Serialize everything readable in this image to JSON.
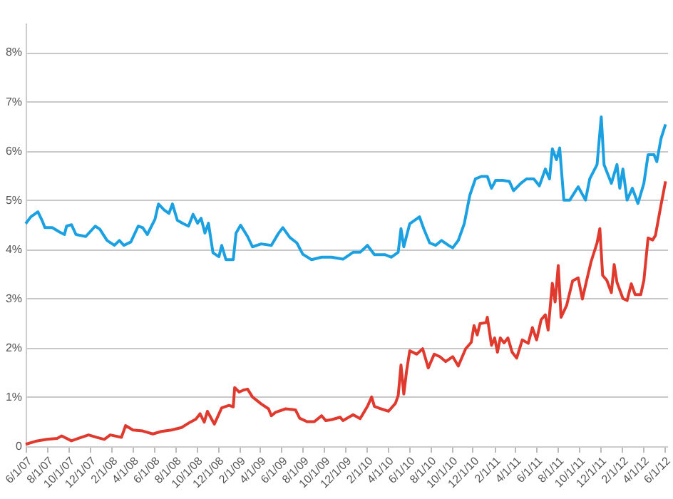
{
  "chart_data": {
    "type": "line",
    "x": [
      "2007-06-01",
      "2007-06-16",
      "2007-07-06",
      "2007-07-19",
      "2007-07-26",
      "2007-08-16",
      "2007-09-06",
      "2007-09-20",
      "2007-09-26",
      "2007-10-10",
      "2007-10-23",
      "2007-11-20",
      "2007-12-17",
      "2007-12-30",
      "2008-01-20",
      "2008-02-10",
      "2008-02-24",
      "2008-03-08",
      "2008-03-28",
      "2008-04-18",
      "2008-05-01",
      "2008-05-14",
      "2008-06-05",
      "2008-06-15",
      "2008-07-01",
      "2008-07-15",
      "2008-07-25",
      "2008-08-08",
      "2008-08-25",
      "2008-09-09",
      "2008-09-22",
      "2008-10-05",
      "2008-10-15",
      "2008-10-26",
      "2008-11-05",
      "2008-11-18",
      "2008-12-05",
      "2008-12-13",
      "2008-12-25",
      "2009-01-15",
      "2009-01-23",
      "2009-02-05",
      "2009-02-25",
      "2009-03-11",
      "2009-04-05",
      "2009-05-04",
      "2009-05-24",
      "2009-06-06",
      "2009-06-26",
      "2009-07-16",
      "2009-08-02",
      "2009-08-27",
      "2009-09-25",
      "2009-10-23",
      "2009-11-25",
      "2009-12-24",
      "2010-01-13",
      "2010-02-03",
      "2010-02-23",
      "2010-03-26",
      "2010-04-12",
      "2010-05-02",
      "2010-05-10",
      "2010-05-18",
      "2010-06-04",
      "2010-06-20",
      "2010-07-02",
      "2010-07-14",
      "2010-07-31",
      "2010-08-17",
      "2010-09-03",
      "2010-09-23",
      "2010-10-05",
      "2010-10-21",
      "2010-11-07",
      "2010-11-23",
      "2010-12-09",
      "2010-12-26",
      "2011-01-12",
      "2011-01-24",
      "2011-02-05",
      "2011-02-25",
      "2011-03-16",
      "2011-03-28",
      "2011-04-18",
      "2011-05-04",
      "2011-05-25",
      "2011-06-10",
      "2011-06-27",
      "2011-07-09",
      "2011-07-17",
      "2011-07-29",
      "2011-08-07",
      "2011-08-19",
      "2011-09-05",
      "2011-09-29",
      "2011-10-20",
      "2011-11-01",
      "2011-11-22",
      "2011-12-04",
      "2011-12-12",
      "2012-01-02",
      "2012-01-18",
      "2012-01-26",
      "2012-02-04",
      "2012-02-16",
      "2012-03-02",
      "2012-03-18",
      "2012-04-04",
      "2012-04-16",
      "2012-05-03",
      "2012-05-11",
      "2012-05-23",
      "2012-06-05"
    ],
    "series": [
      {
        "color": "#1ba1e2",
        "values": [
          4.52,
          4.66,
          4.76,
          4.57,
          4.44,
          4.44,
          4.35,
          4.3,
          4.47,
          4.5,
          4.3,
          4.26,
          4.47,
          4.41,
          4.18,
          4.08,
          4.18,
          4.08,
          4.15,
          4.47,
          4.44,
          4.3,
          4.61,
          4.92,
          4.8,
          4.73,
          4.92,
          4.59,
          4.52,
          4.47,
          4.71,
          4.53,
          4.63,
          4.33,
          4.53,
          3.93,
          3.85,
          4.08,
          3.79,
          3.79,
          4.33,
          4.49,
          4.26,
          4.05,
          4.11,
          4.08,
          4.32,
          4.44,
          4.24,
          4.13,
          3.9,
          3.79,
          3.84,
          3.84,
          3.8,
          3.94,
          3.94,
          4.08,
          3.89,
          3.89,
          3.84,
          3.94,
          4.42,
          4.05,
          4.52,
          4.6,
          4.66,
          4.42,
          4.13,
          4.08,
          4.18,
          4.08,
          4.03,
          4.18,
          4.52,
          5.1,
          5.43,
          5.48,
          5.48,
          5.24,
          5.4,
          5.4,
          5.38,
          5.19,
          5.34,
          5.43,
          5.43,
          5.29,
          5.63,
          5.43,
          6.04,
          5.82,
          6.06,
          5.0,
          5.0,
          5.27,
          5.0,
          5.43,
          5.72,
          6.69,
          5.72,
          5.34,
          5.72,
          5.24,
          5.63,
          5.0,
          5.24,
          4.93,
          5.34,
          5.92,
          5.92,
          5.78,
          6.25,
          6.54
        ]
      },
      {
        "color": "#e03a2f",
        "x": [
          "2007-06-01",
          "2007-06-29",
          "2007-08-01",
          "2007-08-30",
          "2007-09-12",
          "2007-10-10",
          "2007-10-30",
          "2007-11-28",
          "2007-12-22",
          "2008-01-12",
          "2008-01-29",
          "2008-03-01",
          "2008-03-13",
          "2008-04-03",
          "2008-05-01",
          "2008-05-30",
          "2008-06-23",
          "2008-07-22",
          "2008-08-20",
          "2008-09-14",
          "2008-09-30",
          "2008-10-12",
          "2008-10-24",
          "2008-11-02",
          "2008-11-22",
          "2008-12-13",
          "2009-01-03",
          "2009-01-15",
          "2009-01-19",
          "2009-02-01",
          "2009-02-13",
          "2009-02-25",
          "2009-03-11",
          "2009-04-05",
          "2009-04-26",
          "2009-05-04",
          "2009-05-16",
          "2009-06-14",
          "2009-07-12",
          "2009-07-24",
          "2009-08-14",
          "2009-09-04",
          "2009-09-25",
          "2009-10-07",
          "2009-10-23",
          "2009-11-17",
          "2009-11-25",
          "2009-12-24",
          "2010-01-13",
          "2010-02-03",
          "2010-02-15",
          "2010-02-23",
          "2010-03-14",
          "2010-04-04",
          "2010-04-24",
          "2010-05-02",
          "2010-05-10",
          "2010-05-18",
          "2010-05-26",
          "2010-06-04",
          "2010-06-24",
          "2010-07-11",
          "2010-07-27",
          "2010-08-13",
          "2010-08-29",
          "2010-09-15",
          "2010-10-05",
          "2010-10-21",
          "2010-11-11",
          "2010-11-27",
          "2010-12-05",
          "2010-12-14",
          "2010-12-22",
          "2011-01-08",
          "2011-01-12",
          "2011-01-24",
          "2011-02-02",
          "2011-02-10",
          "2011-02-18",
          "2011-03-01",
          "2011-03-12",
          "2011-03-24",
          "2011-04-06",
          "2011-04-22",
          "2011-05-09",
          "2011-05-21",
          "2011-06-02",
          "2011-06-15",
          "2011-06-27",
          "2011-07-05",
          "2011-07-17",
          "2011-07-25",
          "2011-08-03",
          "2011-08-11",
          "2011-08-27",
          "2011-09-13",
          "2011-09-29",
          "2011-10-11",
          "2011-10-23",
          "2011-11-05",
          "2011-11-22",
          "2011-11-30",
          "2011-12-08",
          "2011-12-20",
          "2012-01-02",
          "2012-01-10",
          "2012-01-18",
          "2012-02-04",
          "2012-02-16",
          "2012-02-28",
          "2012-03-10",
          "2012-03-26",
          "2012-04-04",
          "2012-04-16",
          "2012-04-29",
          "2012-05-07",
          "2012-05-23",
          "2012-06-05"
        ],
        "values": [
          0.04,
          0.1,
          0.14,
          0.16,
          0.21,
          0.11,
          0.16,
          0.23,
          0.18,
          0.14,
          0.23,
          0.18,
          0.42,
          0.33,
          0.31,
          0.25,
          0.3,
          0.33,
          0.38,
          0.49,
          0.55,
          0.66,
          0.49,
          0.71,
          0.45,
          0.78,
          0.83,
          0.8,
          1.19,
          1.1,
          1.14,
          1.16,
          1.0,
          0.86,
          0.76,
          0.62,
          0.69,
          0.76,
          0.74,
          0.57,
          0.5,
          0.5,
          0.62,
          0.52,
          0.54,
          0.59,
          0.52,
          0.64,
          0.56,
          0.81,
          1.0,
          0.81,
          0.76,
          0.71,
          0.87,
          1.03,
          1.65,
          1.06,
          1.53,
          1.94,
          1.87,
          1.98,
          1.59,
          1.87,
          1.82,
          1.72,
          1.82,
          1.63,
          1.98,
          2.11,
          2.45,
          2.26,
          2.49,
          2.51,
          2.62,
          2.05,
          2.2,
          1.91,
          2.2,
          2.1,
          2.2,
          1.91,
          1.79,
          2.16,
          2.09,
          2.41,
          2.16,
          2.57,
          2.67,
          2.36,
          3.31,
          2.93,
          3.67,
          2.62,
          2.86,
          3.36,
          3.42,
          2.99,
          3.36,
          3.75,
          4.13,
          4.42,
          3.47,
          3.37,
          3.12,
          3.69,
          3.33,
          3.0,
          2.96,
          3.3,
          3.08,
          3.08,
          3.37,
          4.23,
          4.19,
          4.28,
          4.9,
          5.38
        ]
      }
    ],
    "xlim": [
      "2007-06-01",
      "2012-06-10"
    ],
    "xticks": [
      {
        "value": "2007-06-01",
        "label": "6/1/07"
      },
      {
        "value": "2007-08-01",
        "label": "8/1/07"
      },
      {
        "value": "2007-10-01",
        "label": "10/1/07"
      },
      {
        "value": "2007-12-01",
        "label": "12/1/07"
      },
      {
        "value": "2008-02-01",
        "label": "2/1/08"
      },
      {
        "value": "2008-04-01",
        "label": "4/1/08"
      },
      {
        "value": "2008-06-01",
        "label": "6/1/08"
      },
      {
        "value": "2008-08-01",
        "label": "8/1/08"
      },
      {
        "value": "2008-10-01",
        "label": "10/1/08"
      },
      {
        "value": "2008-12-01",
        "label": "12/1/08"
      },
      {
        "value": "2009-02-01",
        "label": "2/1/09"
      },
      {
        "value": "2009-04-01",
        "label": "4/1/09"
      },
      {
        "value": "2009-06-01",
        "label": "6/1/09"
      },
      {
        "value": "2009-08-01",
        "label": "8/1/09"
      },
      {
        "value": "2009-10-01",
        "label": "10/1/09"
      },
      {
        "value": "2009-12-01",
        "label": "12/1/09"
      },
      {
        "value": "2010-02-01",
        "label": "2/1/10"
      },
      {
        "value": "2010-04-01",
        "label": "4/1/10"
      },
      {
        "value": "2010-06-01",
        "label": "6/1/10"
      },
      {
        "value": "2010-08-01",
        "label": "8/1/10"
      },
      {
        "value": "2010-10-01",
        "label": "10/1/10"
      },
      {
        "value": "2010-12-01",
        "label": "12/1/10"
      },
      {
        "value": "2011-02-01",
        "label": "2/1/11"
      },
      {
        "value": "2011-04-01",
        "label": "4/1/11"
      },
      {
        "value": "2011-06-01",
        "label": "6/1/11"
      },
      {
        "value": "2011-08-01",
        "label": "8/1/11"
      },
      {
        "value": "2011-10-01",
        "label": "10/1/11"
      },
      {
        "value": "2011-12-01",
        "label": "12/1/11"
      },
      {
        "value": "2012-02-01",
        "label": "2/1/12"
      },
      {
        "value": "2012-04-01",
        "label": "4/1/12"
      },
      {
        "value": "2012-06-01",
        "label": "6/1/12"
      }
    ],
    "ylim": [
      0,
      8.6
    ],
    "yticks": [
      {
        "value": 0,
        "label": "0"
      },
      {
        "value": 1,
        "label": "1%"
      },
      {
        "value": 2,
        "label": "2%"
      },
      {
        "value": 3,
        "label": "3%"
      },
      {
        "value": 4,
        "label": "4%"
      },
      {
        "value": 5,
        "label": "5%"
      },
      {
        "value": 6,
        "label": "6%"
      },
      {
        "value": 7,
        "label": "7%"
      },
      {
        "value": 8,
        "label": "8%"
      }
    ],
    "grid": "y"
  }
}
